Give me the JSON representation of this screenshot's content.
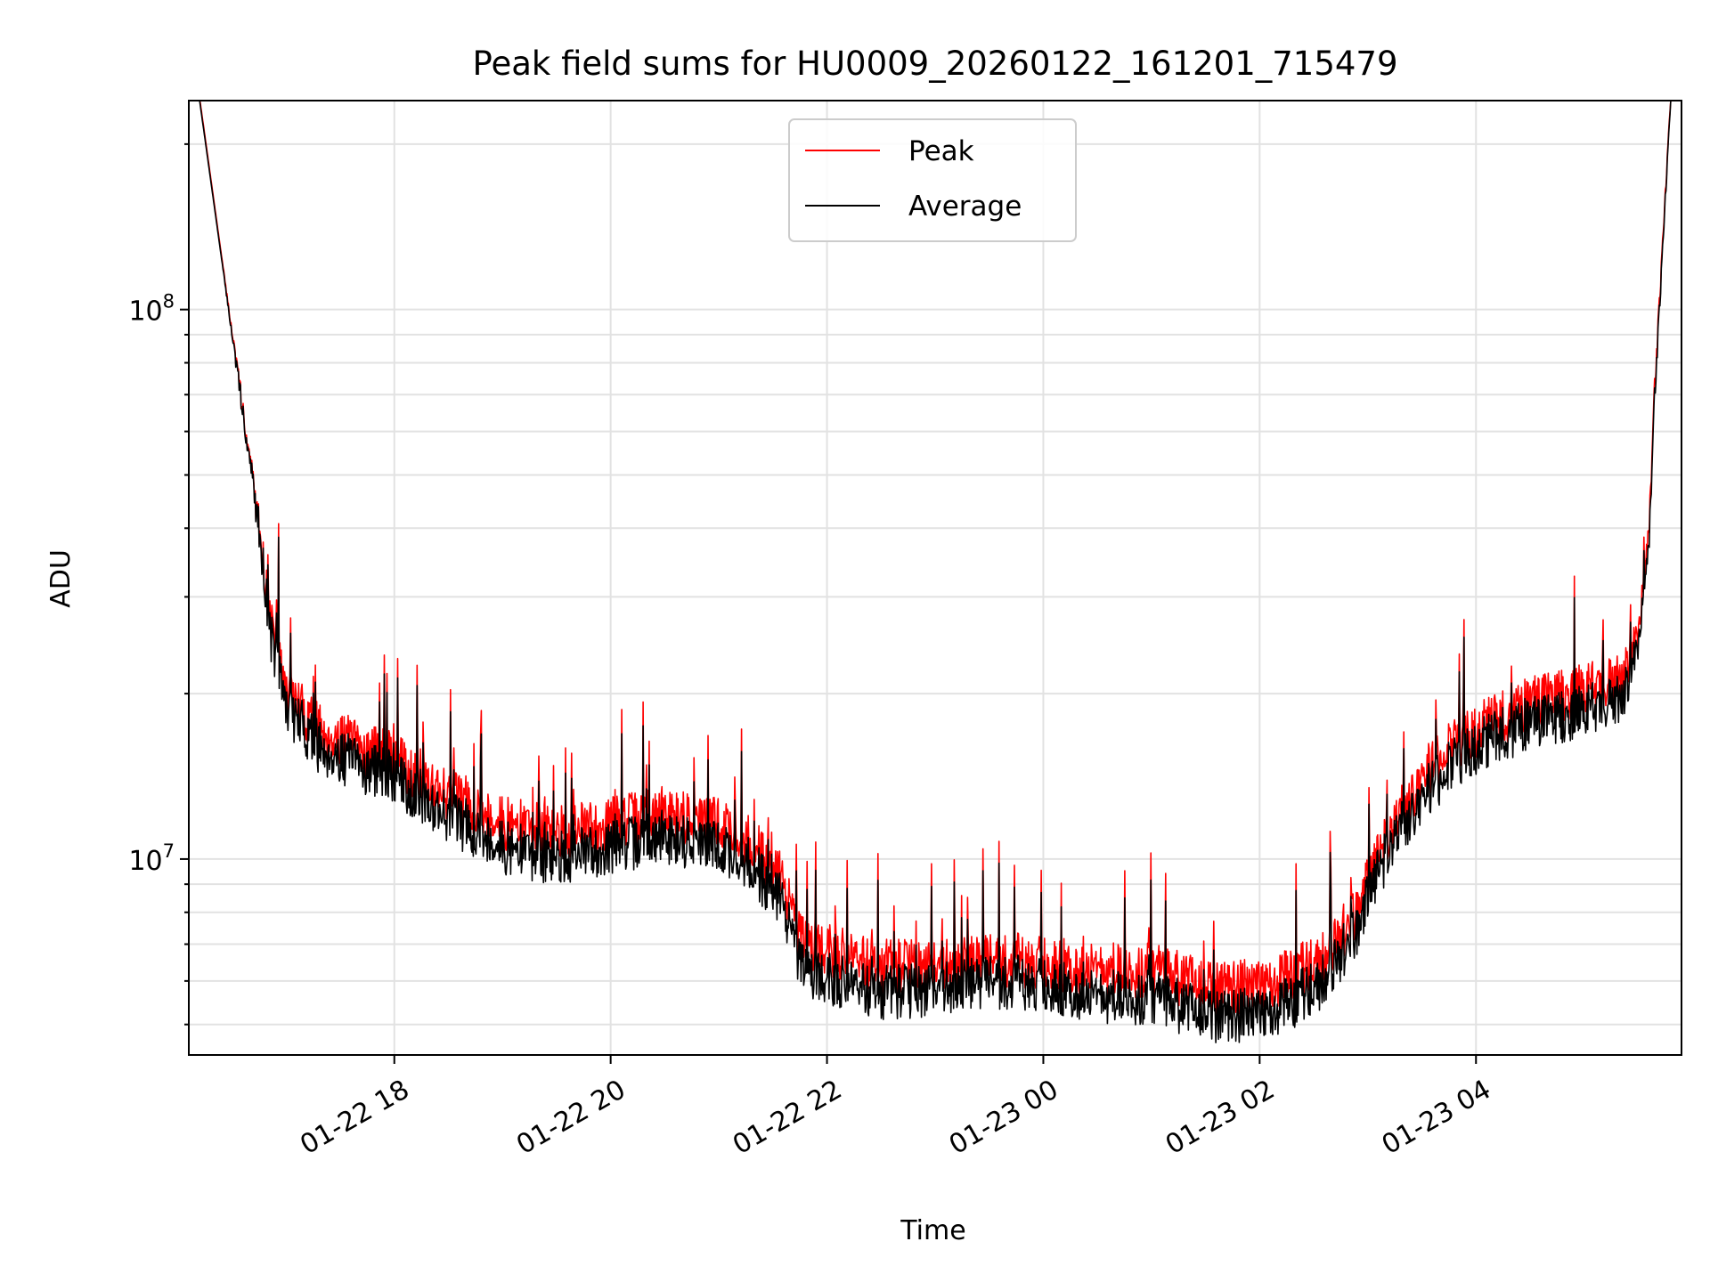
{
  "chart_data": {
    "type": "line",
    "title": "Peak field sums for HU0009_20260122_161201_715479",
    "xlabel": "Time",
    "ylabel": "ADU",
    "yscale": "log",
    "ylim": [
      4400000,
      240000000
    ],
    "xlim_hours": [
      16.1,
      29.9
    ],
    "grid": true,
    "legend_location": "upper center",
    "x_ticks": [
      {
        "hour": 18,
        "label": "01-22 18"
      },
      {
        "hour": 20,
        "label": "01-22 20"
      },
      {
        "hour": 22,
        "label": "01-22 22"
      },
      {
        "hour": 24,
        "label": "01-23 00"
      },
      {
        "hour": 26,
        "label": "01-23 02"
      },
      {
        "hour": 28,
        "label": "01-23 04"
      }
    ],
    "y_ticks": [
      {
        "value": 10000000,
        "base": "10",
        "exp": "7"
      },
      {
        "value": 100000000,
        "base": "10",
        "exp": "8"
      }
    ],
    "series": [
      {
        "name": "Peak",
        "color": "#ff0000",
        "x": [
          16.2,
          16.5,
          16.75,
          16.85,
          17.0,
          17.3,
          17.6,
          18.0,
          18.5,
          19.0,
          19.5,
          20.0,
          20.5,
          21.0,
          21.3,
          21.6,
          21.75,
          22.0,
          22.5,
          23.0,
          23.5,
          24.0,
          24.5,
          25.0,
          25.5,
          26.0,
          26.3,
          26.6,
          26.9,
          27.2,
          27.5,
          27.8,
          28.0,
          28.3,
          28.6,
          29.0,
          29.3,
          29.4,
          29.5,
          29.6,
          29.65,
          29.8
        ],
        "y": [
          240000000,
          90000000,
          40000000,
          27000000,
          20000000,
          17000000,
          16000000,
          15000000,
          13000000,
          11500000,
          11000000,
          11500000,
          12000000,
          11500000,
          10500000,
          9000000,
          7000000,
          6800000,
          6300000,
          6300000,
          6500000,
          6400000,
          6200000,
          6200000,
          5800000,
          5800000,
          6100000,
          6500000,
          8000000,
          11000000,
          14000000,
          16000000,
          17000000,
          18000000,
          19500000,
          20000000,
          21000000,
          22000000,
          26000000,
          40000000,
          70000000,
          240000000
        ]
      },
      {
        "name": "Average",
        "color": "#000000",
        "x": [
          16.2,
          16.5,
          16.75,
          16.85,
          17.0,
          17.3,
          17.6,
          18.0,
          18.5,
          19.0,
          19.5,
          20.0,
          20.5,
          21.0,
          21.3,
          21.6,
          21.75,
          22.0,
          22.5,
          23.0,
          23.5,
          24.0,
          24.5,
          25.0,
          25.5,
          26.0,
          26.3,
          26.6,
          26.9,
          27.2,
          27.5,
          27.8,
          28.0,
          28.3,
          28.6,
          29.0,
          29.3,
          29.4,
          29.5,
          29.6,
          29.65,
          29.8
        ],
        "y": [
          240000000,
          90000000,
          40000000,
          26000000,
          19000000,
          16000000,
          15000000,
          14000000,
          12000000,
          10500000,
          10000000,
          10500000,
          11000000,
          10500000,
          9700000,
          8300000,
          6300000,
          6100000,
          5700000,
          5800000,
          6000000,
          5900000,
          5600000,
          5600000,
          5200000,
          5200000,
          5500000,
          6000000,
          7500000,
          10500000,
          13000000,
          15000000,
          16000000,
          17000000,
          18000000,
          18500000,
          19500000,
          20500000,
          25000000,
          38000000,
          68000000,
          240000000
        ]
      }
    ]
  }
}
